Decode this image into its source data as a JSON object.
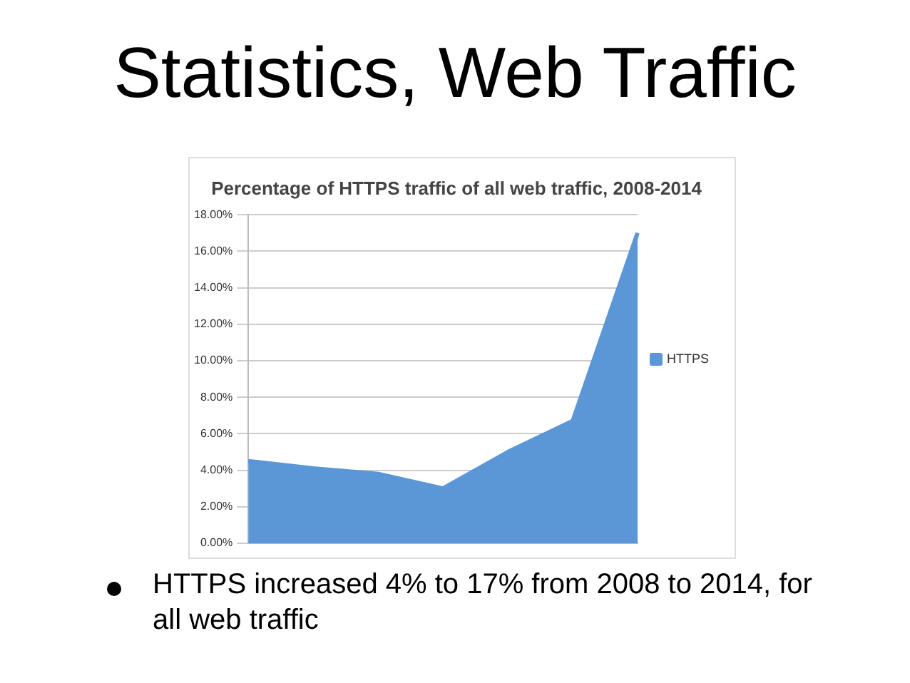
{
  "chart_data": {
    "type": "area",
    "title": "Statistics, Web Traffic",
    "subtitle": "Percentage of HTTPS traffic of all web traffic, 2008-2014",
    "categories": [
      null,
      null,
      null,
      null,
      null,
      null,
      null
    ],
    "series": [
      {
        "name": "HTTPS",
        "color": "#5b96d6",
        "values": [
          4.5,
          4.1,
          3.8,
          3.0,
          5.0,
          6.7,
          17
        ]
      }
    ],
    "ylim": [
      0,
      18
    ],
    "yticks": [
      {
        "value": 0,
        "label": "0.00%"
      },
      {
        "value": 2,
        "label": "2.00%"
      },
      {
        "value": 4,
        "label": "4.00%"
      },
      {
        "value": 6,
        "label": "6.00%"
      },
      {
        "value": 8,
        "label": "8.00%"
      },
      {
        "value": 10,
        "label": "10.00%"
      },
      {
        "value": 12,
        "label": "12.00%"
      },
      {
        "value": 14,
        "label": "14.00%"
      },
      {
        "value": 16,
        "label": "16.00%"
      },
      {
        "value": 18,
        "label": "18.00%"
      }
    ],
    "grid": "y",
    "legend": "right",
    "marker": "none",
    "tick_labels": "y",
    "annotations": [
      "HTTPS increased 4% to 17% from 2008 to 2014, for all web traffic"
    ]
  }
}
